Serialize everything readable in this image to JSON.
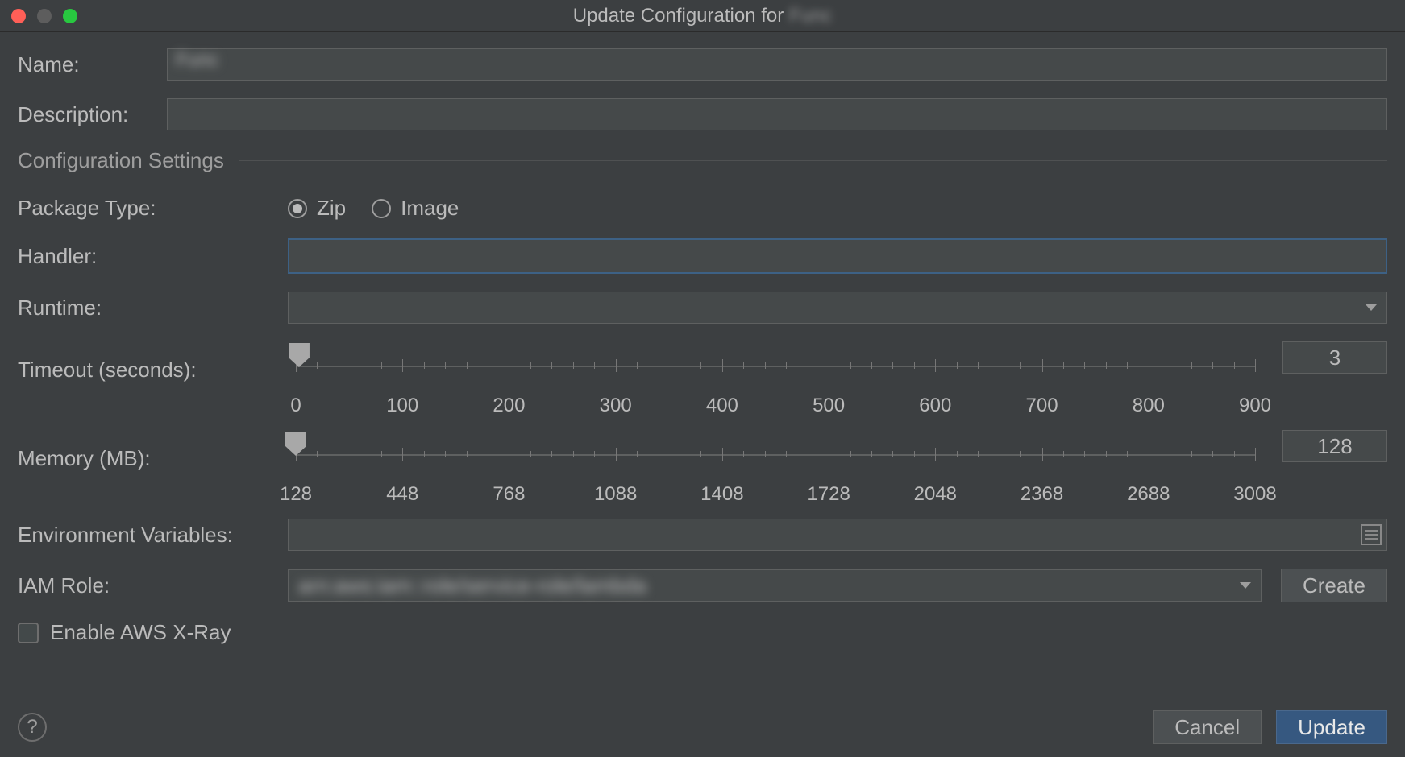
{
  "colors": {
    "background": "#3c3f41",
    "input_bg": "#45494a",
    "border": "#5e6060",
    "text": "#bbbbbb",
    "muted": "#9e9e9e",
    "focus_border": "#3d6185",
    "primary_btn": "#365880",
    "traffic_close": "#ff5f57",
    "traffic_min": "#5d5d5d",
    "traffic_max": "#28c840"
  },
  "titlebar": {
    "title_prefix": "Update Configuration for",
    "title_name": "Func"
  },
  "fields": {
    "name": {
      "label": "Name:",
      "value": "Func"
    },
    "description": {
      "label": "Description:",
      "value": ""
    }
  },
  "section": {
    "title": "Configuration Settings"
  },
  "package_type": {
    "label": "Package Type:",
    "options": [
      "Zip",
      "Image"
    ],
    "selected": "Zip"
  },
  "handler": {
    "label": "Handler:",
    "value": ""
  },
  "runtime": {
    "label": "Runtime:",
    "value": ""
  },
  "timeout": {
    "label": "Timeout (seconds):",
    "min": 0,
    "max": 900,
    "major_step": 100,
    "minor_per_major": 5,
    "value": 3,
    "tick_labels": [
      "0",
      "100",
      "200",
      "300",
      "400",
      "500",
      "600",
      "700",
      "800",
      "900"
    ]
  },
  "memory": {
    "label": "Memory (MB):",
    "min": 128,
    "max": 3008,
    "major_step": 320,
    "minor_per_major": 5,
    "value": 128,
    "tick_labels": [
      "128",
      "448",
      "768",
      "1088",
      "1408",
      "1728",
      "2048",
      "2368",
      "2688",
      "3008"
    ]
  },
  "env": {
    "label": "Environment Variables:",
    "value": ""
  },
  "iam": {
    "label": "IAM Role:",
    "value": "arn:aws:iam::role/service-role/lambda",
    "create": "Create"
  },
  "xray": {
    "label": "Enable AWS X-Ray",
    "checked": false
  },
  "footer": {
    "cancel": "Cancel",
    "update": "Update"
  }
}
